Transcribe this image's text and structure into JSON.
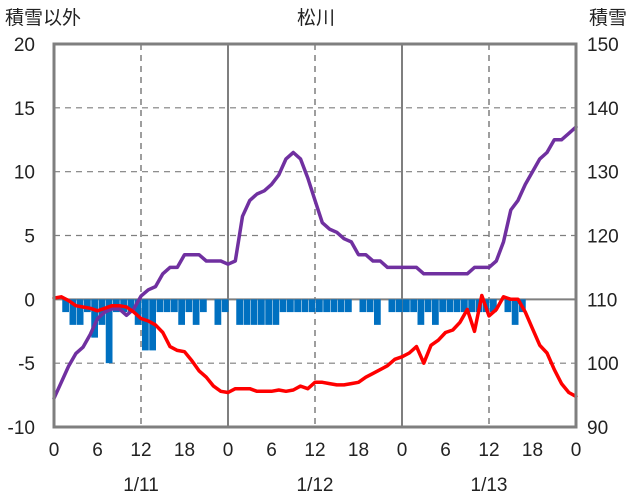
{
  "chart_data": {
    "type": "line",
    "title": "松川",
    "y_left_label": "積雪以外",
    "y_right_label": "積雪",
    "y_left_range": [
      -10,
      20
    ],
    "y_left_ticks": [
      "20",
      "15",
      "10",
      "5",
      "0",
      "-5",
      "-10"
    ],
    "y_right_range": [
      90,
      150
    ],
    "y_right_ticks": [
      "150",
      "140",
      "130",
      "120",
      "110",
      "100",
      "90"
    ],
    "x_range_hours": [
      0,
      72
    ],
    "x_tick_labels": [
      "0",
      "6",
      "12",
      "18",
      "0",
      "6",
      "12",
      "18",
      "0",
      "6",
      "12",
      "18",
      "0"
    ],
    "x_date_labels": [
      "1/11",
      "1/12",
      "1/13"
    ],
    "grid": "dashed vertical at 12h, solid vertical at day boundaries, horizontal at 0",
    "series": [
      {
        "name": "",
        "role": "snow depth (right axis, cm)",
        "color": "#7030a0",
        "x": [
          0,
          1,
          2,
          3,
          4,
          5,
          6,
          7,
          8,
          9,
          10,
          11,
          12,
          13,
          14,
          15,
          16,
          17,
          18,
          19,
          20,
          21,
          22,
          23,
          24,
          25,
          26,
          27,
          28,
          29,
          30,
          31,
          32,
          33,
          34,
          35,
          36,
          37,
          38,
          39,
          40,
          41,
          42,
          43,
          44,
          45,
          46,
          47,
          48,
          49,
          50,
          51,
          52,
          53,
          54,
          55,
          56,
          57,
          58,
          59,
          60,
          61,
          62,
          63,
          64,
          65,
          66,
          67,
          68,
          69,
          70,
          71,
          72
        ],
        "values": [
          94.5,
          97,
          99.5,
          101.5,
          102.5,
          104.5,
          107,
          108,
          108.5,
          108.5,
          107.5,
          108.5,
          110.5,
          111.5,
          112,
          114,
          115,
          115,
          117,
          117,
          117,
          116,
          116,
          116,
          115.5,
          116,
          123,
          125.5,
          126.5,
          127,
          128,
          129.5,
          132,
          133,
          132,
          129,
          125.5,
          122,
          121,
          120.5,
          119.5,
          119,
          117,
          117,
          116,
          116,
          115,
          115,
          115,
          115,
          115,
          114,
          114,
          114,
          114,
          114,
          114,
          114,
          115,
          115,
          115,
          116,
          119,
          124,
          125.5,
          128,
          130,
          132,
          133,
          135,
          135,
          136,
          137
        ]
      },
      {
        "name": "",
        "role": "left axis (red line)",
        "color": "#ff0000",
        "x": [
          0,
          1,
          2,
          3,
          4,
          5,
          6,
          7,
          8,
          9,
          10,
          11,
          12,
          13,
          14,
          15,
          16,
          17,
          18,
          19,
          20,
          21,
          22,
          23,
          24,
          25,
          26,
          27,
          28,
          29,
          30,
          31,
          32,
          33,
          34,
          35,
          36,
          37,
          38,
          39,
          40,
          41,
          42,
          43,
          44,
          45,
          46,
          47,
          48,
          49,
          50,
          51,
          52,
          53,
          54,
          55,
          56,
          57,
          58,
          59,
          60,
          61,
          62,
          63,
          64,
          65,
          66,
          67,
          68,
          69,
          70,
          71,
          72
        ],
        "values": [
          0.1,
          0.2,
          -0.1,
          -0.5,
          -0.6,
          -0.7,
          -0.9,
          -0.7,
          -0.5,
          -0.5,
          -0.6,
          -1.0,
          -1.5,
          -1.7,
          -2.0,
          -2.6,
          -3.7,
          -4.0,
          -4.1,
          -4.8,
          -5.6,
          -6.1,
          -6.8,
          -7.2,
          -7.3,
          -7.0,
          -7.0,
          -7.0,
          -7.2,
          -7.2,
          -7.2,
          -7.1,
          -7.2,
          -7.1,
          -6.8,
          -7.0,
          -6.5,
          -6.5,
          -6.6,
          -6.7,
          -6.7,
          -6.6,
          -6.5,
          -6.1,
          -5.8,
          -5.5,
          -5.2,
          -4.7,
          -4.5,
          -4.2,
          -3.7,
          -5.0,
          -3.6,
          -3.2,
          -2.6,
          -2.4,
          -1.8,
          -0.8,
          -2.5,
          0.3,
          -1.3,
          -0.8,
          0.2,
          0.0,
          0.0,
          -1.0,
          -2.3,
          -3.6,
          -4.2,
          -5.5,
          -6.6,
          -7.3,
          -7.6
        ]
      },
      {
        "name": "",
        "type": "bar",
        "role": "left axis (blue bars)",
        "color": "#0070c0",
        "x": [
          0,
          1,
          2,
          3,
          4,
          5,
          6,
          7,
          8,
          9,
          10,
          11,
          12,
          13,
          14,
          15,
          16,
          17,
          18,
          19,
          20,
          21,
          22,
          23,
          24,
          25,
          26,
          27,
          28,
          29,
          30,
          31,
          32,
          33,
          34,
          35,
          36,
          37,
          38,
          39,
          40,
          41,
          42,
          43,
          44,
          45,
          46,
          47,
          48,
          49,
          50,
          51,
          52,
          53,
          54,
          55,
          56,
          57,
          58,
          59,
          60,
          61,
          62,
          63,
          64,
          65,
          66,
          67,
          68,
          69,
          70,
          71,
          72
        ],
        "values": [
          0,
          -1,
          -2,
          -2,
          -1,
          -3,
          -2,
          -5,
          -1,
          -1,
          -1,
          -2,
          -4,
          -4,
          -1,
          -1,
          -1,
          -2,
          -1,
          -2,
          -1,
          0,
          -2,
          -1,
          0,
          -2,
          -2,
          -2,
          -2,
          -2,
          -2,
          -1,
          -1,
          -1,
          -1,
          -1,
          -1,
          -1,
          -1,
          -1,
          -1,
          0,
          -1,
          -1,
          -2,
          0,
          -1,
          -1,
          -1,
          -1,
          -2,
          -1,
          -2,
          -1,
          -1,
          -1,
          -1,
          -1,
          -1,
          -1,
          -1,
          0,
          -1,
          -2,
          -1,
          0,
          0,
          0,
          0,
          0,
          0,
          0,
          0
        ]
      }
    ]
  }
}
